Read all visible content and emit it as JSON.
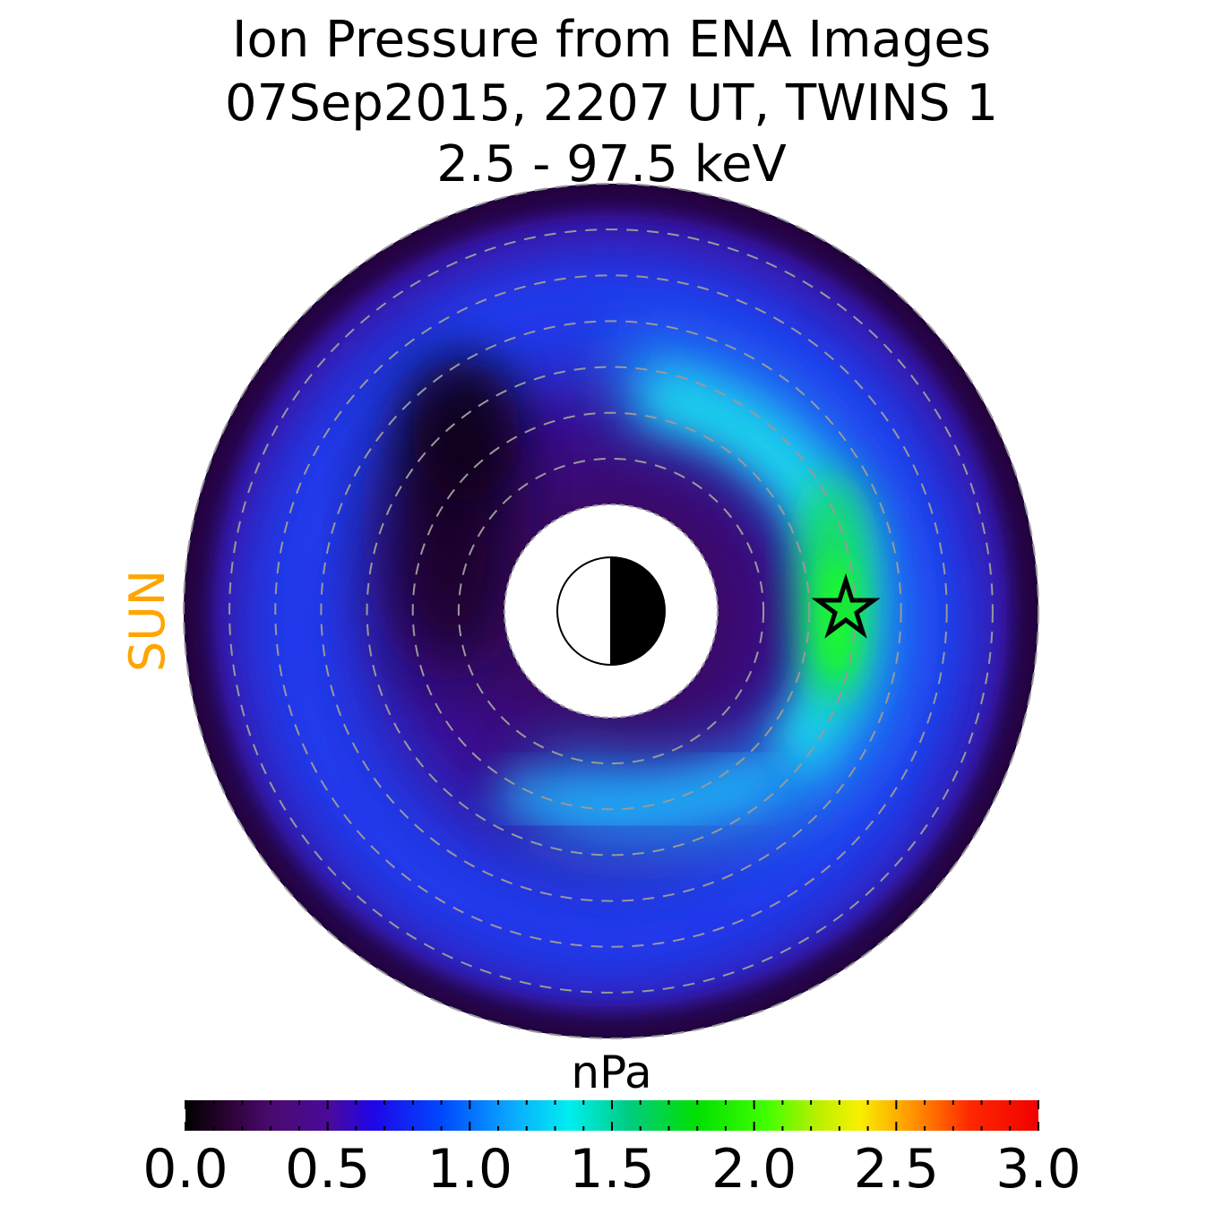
{
  "chart_data": {
    "type": "heatmap",
    "title_lines": [
      "Ion Pressure from  ENA Images",
      "07Sep2015, 2207 UT,  TWINS 1",
      "2.5 - 97.5 keV"
    ],
    "sun_label": "SUN",
    "colorbar": {
      "label": "nPa",
      "range": [
        0.0,
        3.0
      ],
      "ticks": [
        "0.0",
        "0.5",
        "1.0",
        "1.5",
        "2.0",
        "2.5",
        "3.0"
      ],
      "colormap": "nipy_spectral-like (black - purple - blue - cyan - green - yellow - orange - red)"
    },
    "map": {
      "description": "polar equatorial ion pressure map, Sun to the left",
      "peak_value_nPa": 2.0,
      "peak_local_time": "midnight side (right)",
      "minimum_region": "dayside near Earth (left of center)",
      "marker": "star at spacecraft position",
      "dashed_rings": 6,
      "earth": "half-shaded circle, night side black"
    }
  },
  "colors": {
    "sun": "#ffa500",
    "ring": "#999999"
  }
}
